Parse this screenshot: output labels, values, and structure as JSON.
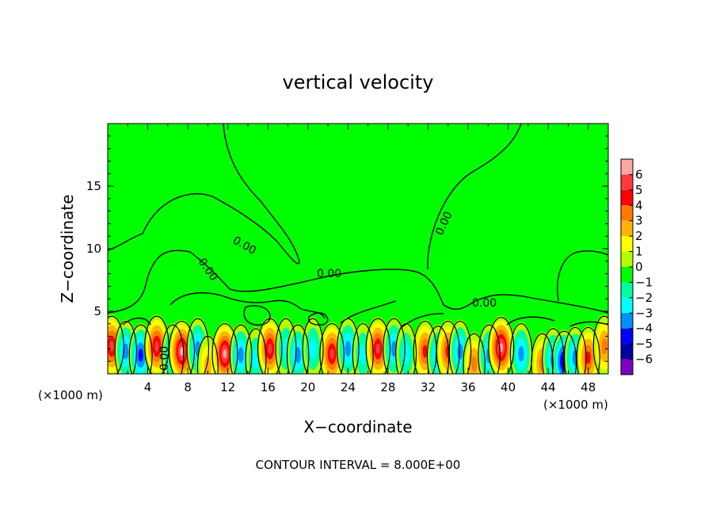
{
  "chart_data": {
    "type": "heatmap",
    "title": "vertical velocity",
    "xlabel": "X−coordinate",
    "ylabel": "Z−coordinate",
    "x_unit_left": "(×1000 m)",
    "x_unit_right": "(×1000 m)",
    "xlim": [
      0,
      50
    ],
    "ylim": [
      0,
      20
    ],
    "x_ticks": [
      4,
      8,
      12,
      16,
      20,
      24,
      28,
      32,
      36,
      40,
      44,
      48
    ],
    "x_tick_labels": [
      "4",
      "8",
      "12",
      "16",
      "20",
      "24",
      "28",
      "32",
      "36",
      "40",
      "44",
      "48"
    ],
    "y_ticks": [
      5,
      10,
      15
    ],
    "y_tick_labels": [
      "5",
      "10",
      "15"
    ],
    "colorbar": {
      "levels": [
        6,
        5,
        4,
        3,
        2,
        1,
        0,
        -1,
        -2,
        -3,
        -4,
        -5,
        -6
      ],
      "labels": [
        "6",
        "5",
        "4",
        "3",
        "2",
        "1",
        "0",
        "−1",
        "−2",
        "−3",
        "−4",
        "−5",
        "−6"
      ],
      "colors": [
        "#ffa6a6",
        "#ff3a3a",
        "#ff0000",
        "#ff7a00",
        "#ffb400",
        "#ffff00",
        "#b4ff00",
        "#00ff00",
        "#00ffa0",
        "#00ffff",
        "#0090ff",
        "#0000ff",
        "#0000a0",
        "#8000c0"
      ]
    },
    "contour_labels": [
      "0.00",
      "0.00",
      "0.00",
      "0.00",
      "0.00",
      "0.00"
    ],
    "background_color": "#00ff00",
    "cells": [
      {
        "x": 0.4,
        "z": 2.2,
        "v": 5
      },
      {
        "x": 1.8,
        "z": 1.8,
        "v": -3
      },
      {
        "x": 3.3,
        "z": 1.5,
        "v": -4
      },
      {
        "x": 4.9,
        "z": 2.2,
        "v": 5
      },
      {
        "x": 6.5,
        "z": 1.5,
        "v": -3
      },
      {
        "x": 7.4,
        "z": 1.8,
        "v": 6
      },
      {
        "x": 9.0,
        "z": 2.0,
        "v": -3
      },
      {
        "x": 10.0,
        "z": 0.6,
        "v": 2
      },
      {
        "x": 11.7,
        "z": 1.6,
        "v": 6
      },
      {
        "x": 13.3,
        "z": 1.5,
        "v": -3
      },
      {
        "x": 14.8,
        "z": 1.2,
        "v": -2
      },
      {
        "x": 16.2,
        "z": 2.0,
        "v": 5
      },
      {
        "x": 17.8,
        "z": 2.0,
        "v": -2
      },
      {
        "x": 19.0,
        "z": 1.5,
        "v": -3
      },
      {
        "x": 20.5,
        "z": 2.0,
        "v": -2
      },
      {
        "x": 22.4,
        "z": 1.6,
        "v": 5
      },
      {
        "x": 24.0,
        "z": 2.0,
        "v": -3
      },
      {
        "x": 25.5,
        "z": 1.6,
        "v": -2
      },
      {
        "x": 27.0,
        "z": 2.0,
        "v": 5
      },
      {
        "x": 28.6,
        "z": 2.0,
        "v": -3
      },
      {
        "x": 29.8,
        "z": 1.6,
        "v": -2
      },
      {
        "x": 31.7,
        "z": 1.8,
        "v": 4
      },
      {
        "x": 33.0,
        "z": 1.4,
        "v": -3
      },
      {
        "x": 34.0,
        "z": 1.8,
        "v": 4
      },
      {
        "x": 35.2,
        "z": 1.8,
        "v": -3
      },
      {
        "x": 36.6,
        "z": 0.8,
        "v": 3
      },
      {
        "x": 38.1,
        "z": 1.5,
        "v": -3
      },
      {
        "x": 39.3,
        "z": 2.1,
        "v": 6
      },
      {
        "x": 41.3,
        "z": 1.6,
        "v": -3
      },
      {
        "x": 43.4,
        "z": 0.8,
        "v": 3
      },
      {
        "x": 44.5,
        "z": 1.2,
        "v": -3
      },
      {
        "x": 45.6,
        "z": 1.0,
        "v": -5
      },
      {
        "x": 46.7,
        "z": 1.3,
        "v": -3
      },
      {
        "x": 48.0,
        "z": 1.3,
        "v": 4
      },
      {
        "x": 49.6,
        "z": 2.2,
        "v": 3
      }
    ]
  },
  "footer": {
    "contour_interval": "CONTOUR INTERVAL = 8.000E+00"
  }
}
